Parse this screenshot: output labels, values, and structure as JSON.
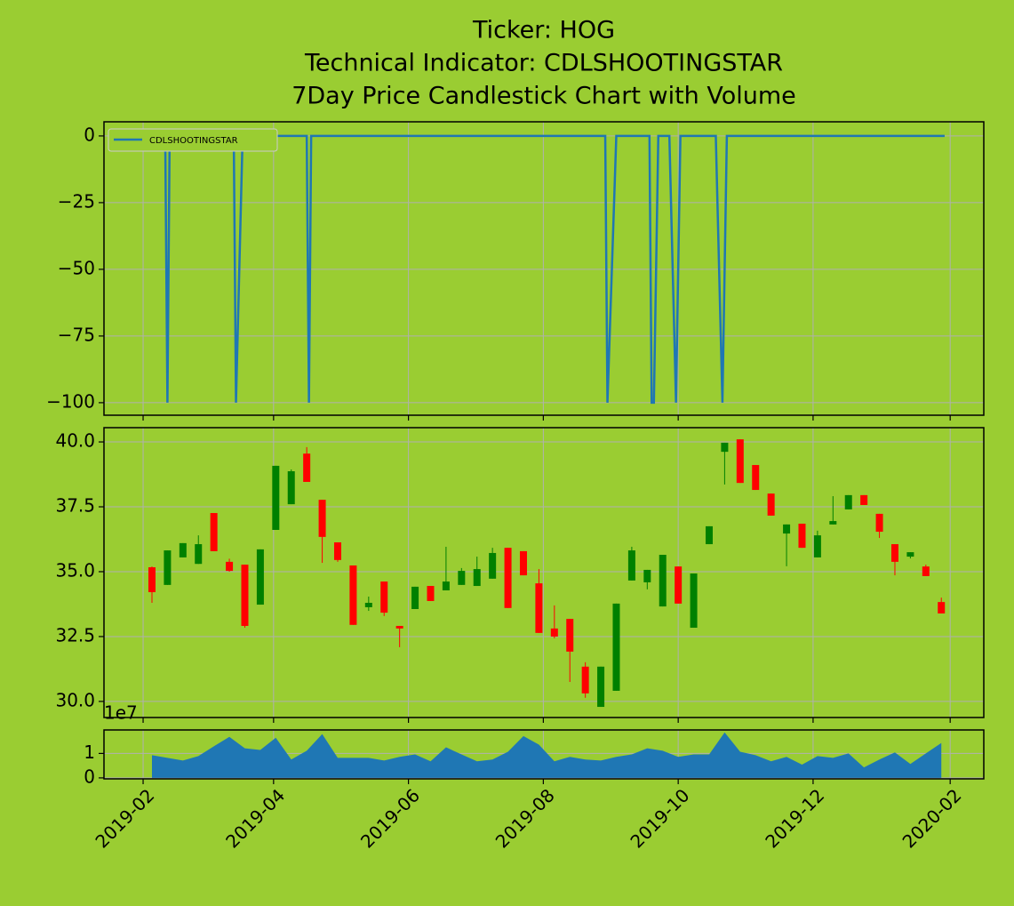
{
  "chart_data": [
    {
      "type": "line",
      "title": [
        "Ticker: HOG",
        "Technical Indicator: CDLSHOOTINGSTAR",
        "7Day Price Candlestick Chart with Volume"
      ],
      "series": [
        {
          "name": "CDLSHOOTINGSTAR",
          "color": "#1f77b4",
          "x": [
            35,
            41,
            42,
            43,
            72,
            73,
            76,
            105,
            106,
            107,
            240,
            241,
            245,
            260,
            261,
            262,
            264,
            269,
            272,
            274,
            290,
            293,
            295,
            393.5
          ],
          "values": [
            0,
            0,
            -100,
            0,
            0,
            -100,
            0,
            0,
            -100,
            0,
            0,
            -100,
            0,
            0,
            -100,
            -100,
            0,
            0,
            -100,
            0,
            0,
            -100,
            0,
            0
          ]
        }
      ],
      "legend": "upper left",
      "xlim": [
        13.3,
        411.2
      ],
      "xticks": [
        31,
        90,
        151,
        212,
        273,
        334,
        396
      ],
      "ylim": [
        -104.7,
        5.3
      ],
      "yticks": [
        0,
        {
          "value": -25,
          "label": "−25"
        },
        {
          "value": -50,
          "label": "−50"
        },
        {
          "value": -75,
          "label": "−75"
        },
        {
          "value": -100,
          "label": "−100"
        }
      ],
      "grid": true
    },
    {
      "type": "candlestick",
      "x": [
        35,
        42,
        49,
        56,
        63,
        70,
        77,
        84,
        91,
        98,
        105,
        112,
        119,
        126,
        133,
        140,
        147,
        154,
        161,
        168,
        175,
        182,
        189,
        196,
        203,
        210,
        217,
        224,
        231,
        238,
        245,
        252,
        259,
        266,
        273,
        280,
        287,
        294,
        301,
        308,
        315,
        322,
        329,
        336,
        343,
        350,
        357,
        364,
        371,
        378,
        385,
        392
      ],
      "open": [
        35.17,
        34.49,
        35.55,
        35.3,
        37.26,
        35.38,
        35.27,
        33.73,
        36.61,
        37.6,
        39.55,
        37.77,
        36.13,
        35.24,
        33.63,
        34.62,
        32.91,
        33.56,
        34.45,
        34.28,
        34.49,
        34.45,
        34.73,
        35.92,
        35.79,
        34.55,
        32.81,
        33.18,
        31.34,
        29.79,
        30.41,
        34.66,
        34.59,
        33.66,
        35.2,
        32.84,
        36.06,
        39.62,
        40.1,
        39.11,
        38.01,
        36.47,
        36.85,
        35.55,
        36.82,
        37.4,
        37.95,
        37.23,
        36.06,
        35.58,
        35.2,
        33.83
      ],
      "high": [
        35.2,
        35.82,
        36.1,
        36.4,
        37.26,
        35.5,
        35.27,
        35.86,
        39.08,
        38.94,
        39.8,
        37.77,
        36.13,
        35.24,
        34.04,
        34.62,
        32.91,
        34.42,
        34.45,
        35.96,
        35.14,
        35.58,
        35.92,
        35.92,
        35.79,
        35.1,
        33.7,
        33.18,
        31.51,
        31.34,
        33.77,
        35.96,
        35.07,
        35.65,
        35.2,
        34.93,
        36.75,
        39.97,
        40.1,
        39.11,
        38.01,
        36.82,
        36.85,
        36.58,
        37.91,
        37.95,
        37.95,
        37.23,
        36.06,
        35.75,
        35.27,
        34.0
      ],
      "low": [
        33.8,
        34.49,
        35.55,
        35.3,
        35.79,
        35.0,
        32.84,
        33.73,
        36.61,
        37.6,
        38.46,
        35.34,
        35.38,
        32.95,
        33.49,
        33.29,
        32.09,
        33.56,
        33.87,
        34.28,
        34.49,
        34.45,
        34.73,
        33.6,
        34.86,
        32.64,
        32.43,
        30.75,
        30.14,
        29.79,
        30.41,
        34.66,
        34.32,
        33.66,
        33.77,
        32.84,
        36.06,
        38.36,
        38.42,
        38.15,
        37.16,
        35.21,
        35.92,
        35.55,
        36.82,
        37.4,
        37.57,
        36.3,
        34.86,
        35.51,
        34.83,
        33.39
      ],
      "close": [
        34.21,
        35.82,
        36.1,
        36.06,
        35.79,
        35.03,
        32.91,
        35.86,
        39.08,
        38.87,
        38.46,
        36.34,
        35.45,
        32.95,
        33.8,
        33.42,
        32.81,
        34.42,
        33.87,
        34.62,
        35.03,
        35.1,
        35.72,
        33.6,
        34.86,
        32.64,
        32.5,
        31.92,
        30.31,
        31.34,
        33.77,
        35.82,
        35.07,
        35.65,
        33.77,
        34.93,
        36.75,
        39.97,
        38.42,
        38.15,
        37.16,
        36.82,
        35.92,
        36.4,
        36.95,
        37.95,
        37.57,
        36.54,
        35.38,
        35.75,
        34.83,
        33.39
      ],
      "up_color": "green",
      "down_color": "red",
      "xlim": [
        13.3,
        411.2
      ],
      "xticks": [
        31,
        90,
        151,
        212,
        273,
        334,
        396
      ],
      "ylim": [
        29.38,
        40.55
      ],
      "yticks": [
        {
          "value": 30,
          "label": "30.0"
        },
        32.5,
        {
          "value": 35,
          "label": "35.0"
        },
        37.5,
        {
          "value": 40,
          "label": "40.0"
        }
      ],
      "grid": true
    },
    {
      "type": "area",
      "x": [
        35,
        42,
        49,
        56,
        63,
        70,
        77,
        84,
        91,
        98,
        105,
        112,
        119,
        126,
        133,
        140,
        147,
        154,
        161,
        168,
        175,
        182,
        189,
        196,
        203,
        210,
        217,
        224,
        231,
        238,
        245,
        252,
        259,
        266,
        273,
        280,
        287,
        294,
        301,
        308,
        315,
        322,
        329,
        336,
        343,
        350,
        357,
        364,
        371,
        378,
        385,
        392
      ],
      "values": [
        0.93,
        0.82,
        0.71,
        0.89,
        1.29,
        1.68,
        1.21,
        1.14,
        1.64,
        0.75,
        1.11,
        1.79,
        0.82,
        0.82,
        0.82,
        0.71,
        0.86,
        0.96,
        0.68,
        1.25,
        0.96,
        0.68,
        0.75,
        1.07,
        1.71,
        1.36,
        0.68,
        0.86,
        0.75,
        0.71,
        0.86,
        0.96,
        1.21,
        1.11,
        0.86,
        0.96,
        0.96,
        1.86,
        1.07,
        0.93,
        0.68,
        0.86,
        0.54,
        0.89,
        0.82,
        1.0,
        0.43,
        0.75,
        1.04,
        0.57,
        1.0,
        1.43
      ],
      "color": "#1f77b4",
      "offset_label": "1e7",
      "xlim": [
        13.3,
        411.2
      ],
      "xticks": [
        {
          "value": 31,
          "label": "2019-02"
        },
        {
          "value": 90,
          "label": "2019-04"
        },
        {
          "value": 151,
          "label": "2019-06"
        },
        {
          "value": 212,
          "label": "2019-08"
        },
        {
          "value": 273,
          "label": "2019-10"
        },
        {
          "value": 334,
          "label": "2019-12"
        },
        {
          "value": 396,
          "label": "2020-02"
        }
      ],
      "ylim": [
        -0.04,
        1.96
      ],
      "yticks": [
        0,
        1
      ],
      "grid": true
    }
  ]
}
